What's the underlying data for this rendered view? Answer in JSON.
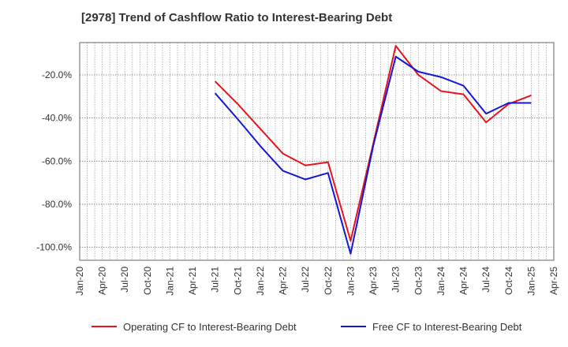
{
  "chart_data": {
    "type": "line",
    "title": "[2978]  Trend of Cashflow Ratio to Interest-Bearing Debt",
    "xlabel": "",
    "ylabel": "",
    "x_tick_labels": [
      "Jan-20",
      "Apr-20",
      "Jul-20",
      "Oct-20",
      "Jan-21",
      "Apr-21",
      "Jul-21",
      "Oct-21",
      "Jan-22",
      "Apr-22",
      "Jul-22",
      "Oct-22",
      "Jan-23",
      "Apr-23",
      "Jul-23",
      "Oct-23",
      "Jan-24",
      "Apr-24",
      "Jul-24",
      "Oct-24",
      "Jan-25",
      "Apr-25"
    ],
    "y_ticks": [
      -20,
      -40,
      -60,
      -80,
      -100
    ],
    "y_tick_labels": [
      "-20.0%",
      "-40.0%",
      "-60.0%",
      "-80.0%",
      "-100.0%"
    ],
    "ylim": [
      -106,
      -5
    ],
    "grid": true,
    "legend_position": "bottom",
    "x": [
      "Jul-21",
      "Oct-21",
      "Jan-22",
      "Apr-22",
      "Jul-22",
      "Oct-22",
      "Jan-23",
      "Apr-23",
      "Jul-23",
      "Oct-23",
      "Jan-24",
      "Apr-24",
      "Jul-24",
      "Oct-24",
      "Jan-25"
    ],
    "series": [
      {
        "name": "Operating CF to Interest-Bearing Debt",
        "color": "#e8141d",
        "values": [
          -23.0,
          -33.5,
          -45.0,
          -56.5,
          -62.0,
          -60.5,
          -97.0,
          -52.0,
          -6.5,
          -20.0,
          -27.5,
          -29.0,
          -42.0,
          -33.5,
          -29.5
        ]
      },
      {
        "name": "Free CF to Interest-Bearing Debt",
        "color": "#1517d8",
        "values": [
          -28.5,
          -40.5,
          -53.0,
          -64.5,
          -68.5,
          -65.5,
          -103.0,
          -53.0,
          -11.5,
          -18.5,
          -21.0,
          -25.0,
          -38.0,
          -33.0,
          -33.0
        ]
      }
    ]
  }
}
